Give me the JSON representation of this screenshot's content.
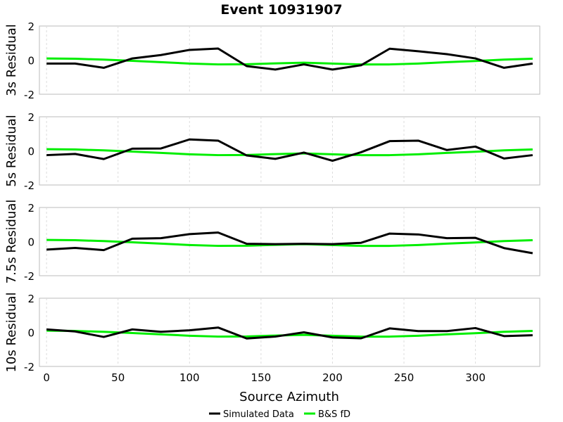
{
  "chart_data": {
    "type": "line",
    "title": "Event 10931907",
    "xlabel": "Source Azimuth",
    "xlim": [
      -5,
      345
    ],
    "xticks": [
      0,
      50,
      100,
      150,
      200,
      250,
      300
    ],
    "yticks": [
      -2,
      0,
      2
    ],
    "ylim": [
      -2,
      2
    ],
    "grid": "vertical dashed",
    "legend_position": "bottom-center",
    "legend": [
      {
        "name": "Simulated Data",
        "color": "#000000"
      },
      {
        "name": "B&S fD",
        "color": "#00ee00"
      }
    ],
    "x": [
      0,
      20,
      40,
      60,
      80,
      100,
      120,
      140,
      160,
      180,
      200,
      220,
      240,
      260,
      280,
      300,
      320,
      340
    ],
    "panels": [
      {
        "ylabel": "3s Residual",
        "series": [
          {
            "name": "Simulated Data",
            "values": [
              -0.2,
              -0.2,
              -0.45,
              0.1,
              0.3,
              0.6,
              0.68,
              -0.35,
              -0.55,
              -0.25,
              -0.55,
              -0.3,
              0.67,
              0.52,
              0.35,
              0.1,
              -0.45,
              -0.2
            ]
          },
          {
            "name": "B&S fD",
            "values": [
              0.1,
              0.08,
              0.03,
              -0.04,
              -0.12,
              -0.2,
              -0.25,
              -0.24,
              -0.19,
              -0.15,
              -0.2,
              -0.25,
              -0.25,
              -0.2,
              -0.12,
              -0.05,
              0.03,
              0.08
            ]
          }
        ]
      },
      {
        "ylabel": "5s Residual",
        "series": [
          {
            "name": "Simulated Data",
            "values": [
              -0.25,
              -0.18,
              -0.48,
              0.13,
              0.14,
              0.67,
              0.6,
              -0.27,
              -0.47,
              -0.1,
              -0.58,
              -0.08,
              0.57,
              0.6,
              0.05,
              0.25,
              -0.45,
              -0.25
            ]
          },
          {
            "name": "B&S fD",
            "values": [
              0.1,
              0.08,
              0.03,
              -0.04,
              -0.12,
              -0.2,
              -0.25,
              -0.24,
              -0.19,
              -0.15,
              -0.2,
              -0.25,
              -0.25,
              -0.2,
              -0.12,
              -0.05,
              0.03,
              0.08
            ]
          }
        ]
      },
      {
        "ylabel": "7.5s Residual",
        "series": [
          {
            "name": "Simulated Data",
            "values": [
              -0.47,
              -0.37,
              -0.5,
              0.17,
              0.2,
              0.44,
              0.53,
              -0.13,
              -0.15,
              -0.13,
              -0.15,
              -0.07,
              0.47,
              0.42,
              0.2,
              0.22,
              -0.38,
              -0.68
            ]
          },
          {
            "name": "B&S fD",
            "values": [
              0.1,
              0.08,
              0.03,
              -0.04,
              -0.12,
              -0.2,
              -0.25,
              -0.24,
              -0.19,
              -0.15,
              -0.2,
              -0.25,
              -0.25,
              -0.2,
              -0.12,
              -0.05,
              0.03,
              0.08
            ]
          }
        ]
      },
      {
        "ylabel": "10s Residual",
        "series": [
          {
            "name": "Simulated Data",
            "values": [
              0.17,
              0.05,
              -0.27,
              0.17,
              0.03,
              0.12,
              0.28,
              -0.36,
              -0.25,
              0.0,
              -0.3,
              -0.35,
              0.23,
              0.07,
              0.07,
              0.25,
              -0.22,
              -0.17
            ]
          },
          {
            "name": "B&S fD",
            "values": [
              0.1,
              0.08,
              0.03,
              -0.04,
              -0.12,
              -0.2,
              -0.25,
              -0.24,
              -0.19,
              -0.15,
              -0.2,
              -0.25,
              -0.25,
              -0.2,
              -0.12,
              -0.05,
              0.03,
              0.08
            ]
          }
        ]
      }
    ]
  }
}
